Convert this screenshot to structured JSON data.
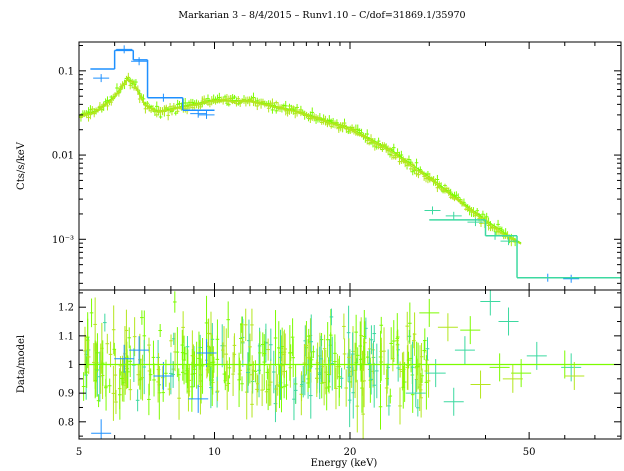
{
  "chart_data": [
    {
      "type": "scatter",
      "panel": "spectrum",
      "title": "Markarian 3 – 8/4/2015 – Runv1.10 – C/dof=31869.1/35970",
      "ylabel": "Cts/s/keV",
      "xlabel": "",
      "x_scale": "log",
      "y_scale": "log",
      "xlim": [
        5,
        80
      ],
      "ylim": [
        0.00025,
        0.22
      ],
      "yticks": [
        {
          "value": 0.1,
          "label": "0.1"
        },
        {
          "value": 0.01,
          "label": "0.01"
        },
        {
          "value": 0.001,
          "label": "10⁻³"
        }
      ],
      "series": [
        {
          "color": "#1e90ff",
          "step_model": [
            [
              5.3,
              6.0,
              0.105
            ],
            [
              6.0,
              6.6,
              0.175
            ],
            [
              6.6,
              7.1,
              0.135
            ],
            [
              7.1,
              8.5,
              0.048
            ],
            [
              8.5,
              10.0,
              0.034
            ],
            [
              47.0,
              80.0,
              0.00035
            ]
          ],
          "points": [
            [
              5.6,
              0.082
            ],
            [
              6.3,
              0.18
            ],
            [
              6.8,
              0.13
            ],
            [
              7.7,
              0.048
            ],
            [
              9.2,
              0.031
            ],
            [
              9.6,
              0.03
            ],
            [
              55.0,
              0.00035
            ],
            [
              62.0,
              0.00034
            ]
          ]
        },
        {
          "color": "#3cd9a0",
          "step_model": [
            [
              30.0,
              40.0,
              0.0017
            ],
            [
              40.0,
              47.0,
              0.0011
            ],
            [
              47.0,
              80.0,
              0.00035
            ]
          ],
          "points": [
            [
              30.5,
              0.0022
            ],
            [
              34.0,
              0.0019
            ],
            [
              38.0,
              0.0016
            ],
            [
              42.0,
              0.0011
            ],
            [
              45.0,
              0.00095
            ]
          ]
        },
        {
          "color": "#7cfc00",
          "model_curve": [
            [
              5.0,
              0.029
            ],
            [
              5.5,
              0.034
            ],
            [
              6.0,
              0.05
            ],
            [
              6.4,
              0.08
            ],
            [
              6.6,
              0.074
            ],
            [
              7.0,
              0.04
            ],
            [
              7.5,
              0.033
            ],
            [
              8.5,
              0.038
            ],
            [
              10.0,
              0.045
            ],
            [
              12.0,
              0.044
            ],
            [
              15.0,
              0.034
            ],
            [
              20.0,
              0.021
            ],
            [
              25.0,
              0.011
            ],
            [
              30.0,
              0.0055
            ],
            [
              35.0,
              0.0029
            ],
            [
              40.0,
              0.0017
            ],
            [
              45.0,
              0.0011
            ],
            [
              48.0,
              0.0009
            ]
          ],
          "scatter_frac": 0.12
        },
        {
          "color": "#b4e61e",
          "model_curve": [
            [
              5.0,
              0.028
            ],
            [
              5.5,
              0.033
            ],
            [
              6.0,
              0.048
            ],
            [
              6.4,
              0.078
            ],
            [
              6.6,
              0.072
            ],
            [
              7.0,
              0.039
            ],
            [
              7.5,
              0.032
            ],
            [
              8.5,
              0.037
            ],
            [
              10.0,
              0.044
            ],
            [
              12.0,
              0.043
            ],
            [
              15.0,
              0.033
            ],
            [
              20.0,
              0.02
            ],
            [
              25.0,
              0.0105
            ],
            [
              30.0,
              0.0052
            ],
            [
              35.0,
              0.0028
            ],
            [
              40.0,
              0.0016
            ],
            [
              45.0,
              0.00105
            ],
            [
              48.0,
              0.00088
            ]
          ],
          "scatter_frac": 0.12
        }
      ]
    },
    {
      "type": "scatter",
      "panel": "residuals",
      "ylabel": "Data/model",
      "xlabel": "Energy (keV)",
      "x_scale": "log",
      "y_scale": "linear",
      "xlim": [
        5,
        80
      ],
      "ylim": [
        0.74,
        1.26
      ],
      "xticks": [
        5,
        10,
        20,
        50
      ],
      "yticks": [
        0.8,
        0.9,
        1,
        1.1,
        1.2
      ],
      "reference_line": 1,
      "series": [
        {
          "color": "#1e90ff",
          "points": [
            [
              5.6,
              0.76
            ],
            [
              6.3,
              1.02
            ],
            [
              6.8,
              1.05
            ],
            [
              7.7,
              0.96
            ],
            [
              9.2,
              0.88
            ],
            [
              9.6,
              1.04
            ]
          ]
        },
        {
          "color": "#3cd9a0",
          "points": [
            [
              28.0,
              0.9
            ],
            [
              31.0,
              0.97
            ],
            [
              34.0,
              0.87
            ],
            [
              36.0,
              1.05
            ],
            [
              41.0,
              1.22
            ],
            [
              45.0,
              1.15
            ],
            [
              52.0,
              1.03
            ],
            [
              62.0,
              0.99
            ]
          ]
        },
        {
          "color": "#7cfc00",
          "points": [
            [
              30.0,
              1.18
            ],
            [
              37.0,
              1.12
            ],
            [
              43.0,
              0.99
            ],
            [
              48.0,
              0.97
            ],
            [
              60.0,
              1.0
            ]
          ]
        },
        {
          "color": "#b4e61e",
          "points": [
            [
              33.0,
              1.13
            ],
            [
              39.0,
              0.93
            ],
            [
              46.0,
              0.95
            ],
            [
              63.0,
              0.96
            ]
          ]
        }
      ],
      "dense_region": {
        "x_min": 5.1,
        "x_max": 30.0,
        "y_spread": 0.18
      }
    }
  ]
}
